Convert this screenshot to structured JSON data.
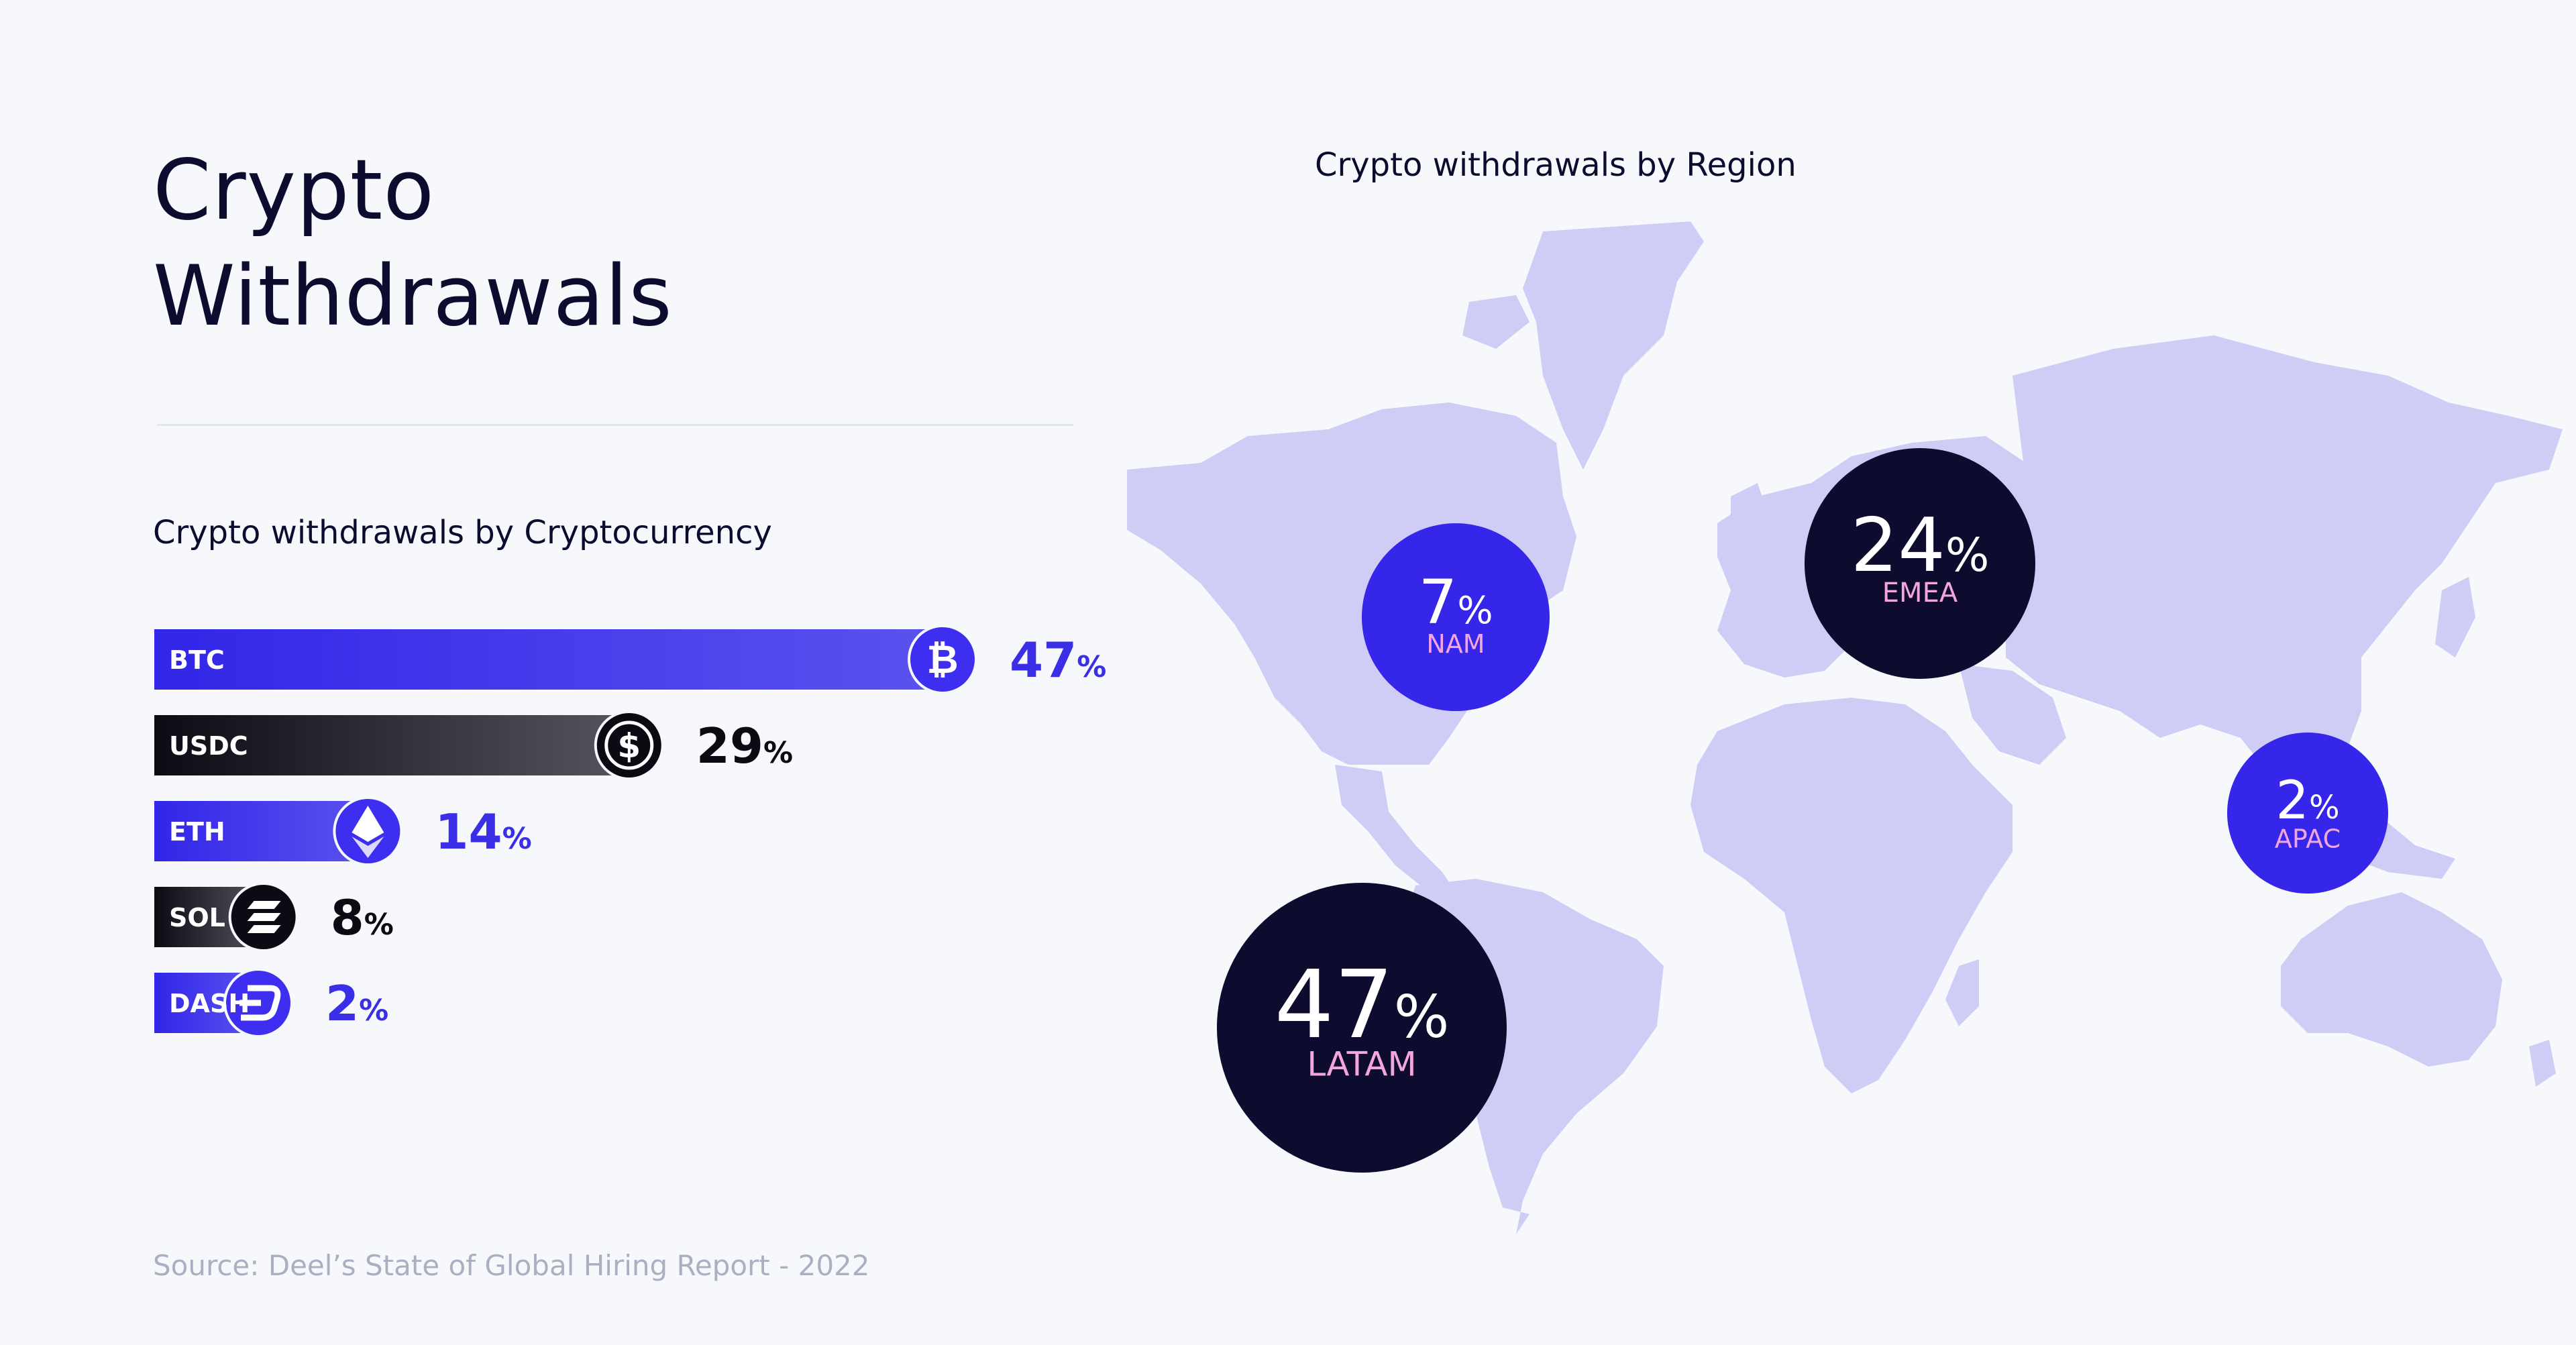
{
  "title_lines": [
    "Crypto",
    "Withdrawals"
  ],
  "source": "Source: Deel’s State of Global Hiring Report - 2022",
  "chart_data": [
    {
      "type": "bar",
      "orientation": "horizontal",
      "title": "Crypto withdrawals by Cryptocurrency",
      "categories": [
        "BTC",
        "USDC",
        "ETH",
        "SOL",
        "DASH"
      ],
      "values": [
        47,
        29,
        14,
        8,
        2
      ],
      "unit": "%",
      "xlim": [
        0,
        47
      ],
      "grid": false,
      "bar_styles": [
        {
          "fill_start": "#3226e8",
          "fill_end": "#5b52ee",
          "icon_bg": "#3d2ef0",
          "icon": "bitcoin-icon",
          "value_color": "#3a2fe6"
        },
        {
          "fill_start": "#0b0b14",
          "fill_end": "#55555d",
          "icon_bg": "#0b0b14",
          "icon": "usdc-icon",
          "value_color": "#0b0b14"
        },
        {
          "fill_start": "#3226e8",
          "fill_end": "#5b52ee",
          "icon_bg": "#3d2ef0",
          "icon": "ethereum-icon",
          "value_color": "#3a2fe6"
        },
        {
          "fill_start": "#0b0b14",
          "fill_end": "#55555d",
          "icon_bg": "#0b0b14",
          "icon": "solana-icon",
          "value_color": "#0b0b14"
        },
        {
          "fill_start": "#3226e8",
          "fill_end": "#5b52ee",
          "icon_bg": "#3d2ef0",
          "icon": "dash-icon",
          "value_color": "#3a2fe6"
        }
      ]
    },
    {
      "type": "bubble-map",
      "title": "Crypto withdrawals by Region",
      "categories": [
        "NAM",
        "EMEA",
        "APAC",
        "LATAM"
      ],
      "values": [
        7,
        24,
        2,
        47
      ],
      "unit": "%",
      "bubble_styles": [
        {
          "bg": "#3526ea",
          "label_color": "#f3a6dd"
        },
        {
          "bg": "#0d0b2e",
          "label_color": "#f3a6dd"
        },
        {
          "bg": "#3526ea",
          "label_color": "#f3a6dd"
        },
        {
          "bg": "#0d0b2e",
          "label_color": "#f3a6dd"
        }
      ],
      "land_color": "#cfcdf5"
    }
  ]
}
